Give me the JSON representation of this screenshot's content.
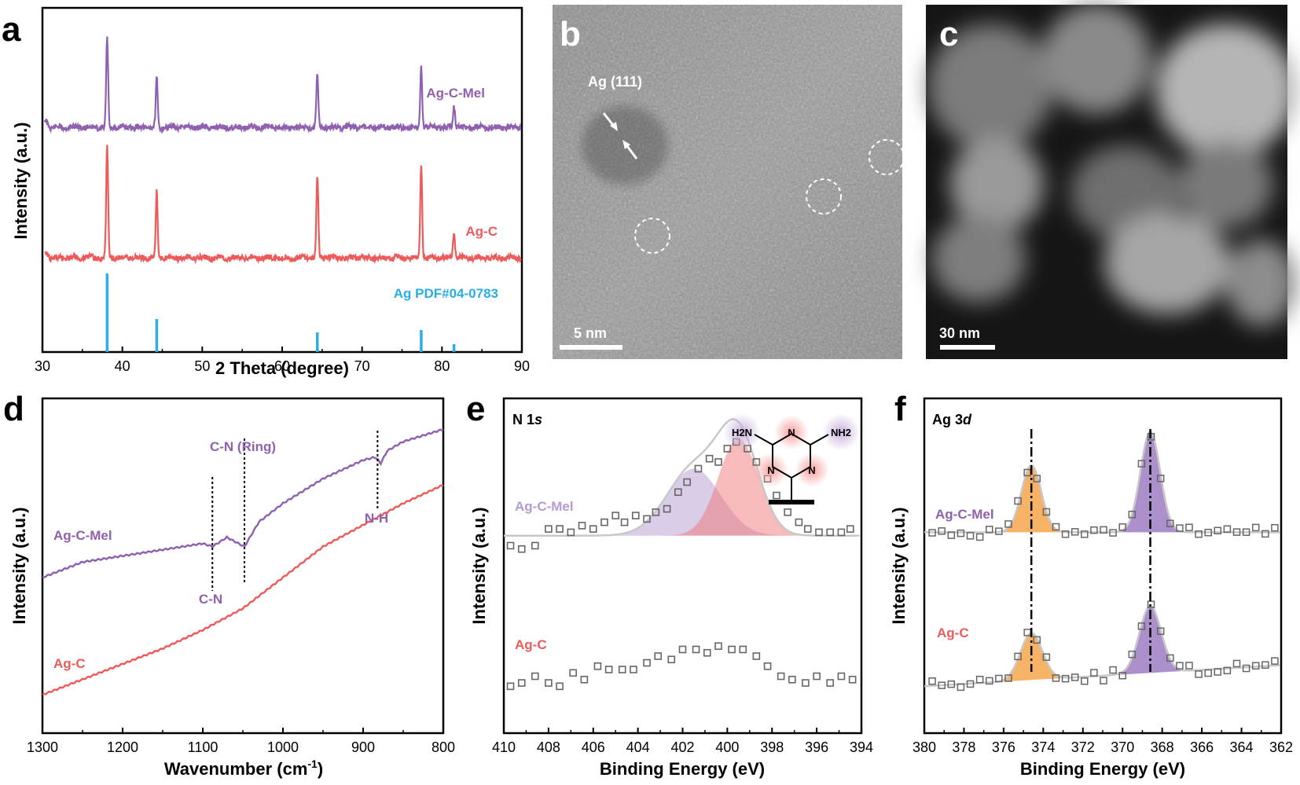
{
  "colors": {
    "purple": "#9060b0",
    "red": "#ee5a5a",
    "blue": "#29aee8",
    "orange": "#f5a54a",
    "gray_marker": "#666666",
    "fit_gray": "#c8c8c8"
  },
  "panels": {
    "a": {
      "letter": "a"
    },
    "b": {
      "letter": "b",
      "annotation": "Ag (111)",
      "scalebar": "5 nm"
    },
    "c": {
      "letter": "c",
      "scalebar": "30 nm"
    },
    "d": {
      "letter": "d",
      "annotations": [
        "C-N (Ring)",
        "N-H",
        "C-N"
      ]
    },
    "e": {
      "letter": "e",
      "label_main": "N 1",
      "label_italic": "s"
    },
    "f": {
      "letter": "f",
      "label_main": "Ag 3",
      "label_italic": "d"
    }
  },
  "chart_data": [
    {
      "id": "a",
      "type": "line",
      "xlabel": "2 Theta (degree)",
      "ylabel": "Intensity (a.u.)",
      "xlim": [
        30,
        90
      ],
      "xticks": [
        "30",
        "40",
        "50",
        "60",
        "70",
        "80",
        "90"
      ],
      "series": [
        {
          "name": "Ag-C-Mel",
          "color": "#9060b0",
          "peaks": [
            [
              38.1,
              1.0
            ],
            [
              44.3,
              0.55
            ],
            [
              64.4,
              0.6
            ],
            [
              77.4,
              0.7
            ],
            [
              81.5,
              0.25
            ]
          ]
        },
        {
          "name": "Ag-C",
          "color": "#ee5a5a",
          "peaks": [
            [
              38.1,
              1.0
            ],
            [
              44.3,
              0.6
            ],
            [
              64.4,
              0.75
            ],
            [
              77.4,
              0.85
            ],
            [
              81.5,
              0.25
            ]
          ]
        }
      ],
      "reference": {
        "name": "Ag PDF#04-0783",
        "color": "#29aee8",
        "lines": [
          [
            38.1,
            1.0
          ],
          [
            44.3,
            0.42
          ],
          [
            64.4,
            0.25
          ],
          [
            77.4,
            0.28
          ],
          [
            81.5,
            0.1
          ]
        ]
      }
    },
    {
      "id": "d",
      "type": "line",
      "xlabel": "Wavenumber",
      "xlabel_unit": "(cm",
      "xlabel_sup": "-1",
      "ylabel": "Intensity (a.u.)",
      "xlim": [
        1300,
        800
      ],
      "xticks": [
        "1300",
        "1200",
        "1100",
        "1000",
        "900",
        "800"
      ],
      "series": [
        {
          "name": "Ag-C-Mel",
          "color": "#9060b0",
          "points": [
            [
              1300,
              0.42
            ],
            [
              1250,
              0.47
            ],
            [
              1200,
              0.49
            ],
            [
              1150,
              0.51
            ],
            [
              1100,
              0.53
            ],
            [
              1088,
              0.52
            ],
            [
              1070,
              0.55
            ],
            [
              1048,
              0.52
            ],
            [
              1030,
              0.6
            ],
            [
              1000,
              0.66
            ],
            [
              950,
              0.74
            ],
            [
              900,
              0.8
            ],
            [
              885,
              0.81
            ],
            [
              878,
              0.79
            ],
            [
              870,
              0.83
            ],
            [
              850,
              0.86
            ],
            [
              800,
              0.9
            ]
          ]
        },
        {
          "name": "Ag-C",
          "color": "#ee5a5a",
          "points": [
            [
              1300,
              0.04
            ],
            [
              1250,
              0.09
            ],
            [
              1200,
              0.14
            ],
            [
              1150,
              0.19
            ],
            [
              1100,
              0.25
            ],
            [
              1050,
              0.32
            ],
            [
              1000,
              0.42
            ],
            [
              950,
              0.52
            ],
            [
              900,
              0.59
            ],
            [
              850,
              0.66
            ],
            [
              800,
              0.72
            ]
          ]
        }
      ]
    },
    {
      "id": "e",
      "type": "scatter",
      "xlabel": "Binding Energy (eV)",
      "ylabel": "Intensity (a.u.)",
      "xlim": [
        410,
        394
      ],
      "xticks": [
        "410",
        "408",
        "406",
        "404",
        "402",
        "400",
        "398",
        "396",
        "394"
      ],
      "series": [
        {
          "name": "Ag-C-Mel",
          "color": "#9060b0",
          "points": [
            [
              409.7,
              0.56
            ],
            [
              409.2,
              0.55
            ],
            [
              408.6,
              0.56
            ],
            [
              408,
              0.61
            ],
            [
              407.5,
              0.61
            ],
            [
              407,
              0.6
            ],
            [
              406.5,
              0.62
            ],
            [
              406,
              0.61
            ],
            [
              405.5,
              0.63
            ],
            [
              405,
              0.65
            ],
            [
              404.6,
              0.63
            ],
            [
              404.1,
              0.65
            ],
            [
              403.6,
              0.64
            ],
            [
              403.2,
              0.66
            ],
            [
              402.7,
              0.67
            ],
            [
              402.2,
              0.72
            ],
            [
              401.8,
              0.75
            ],
            [
              401.3,
              0.79
            ],
            [
              400.8,
              0.82
            ],
            [
              400.4,
              0.81
            ],
            [
              400,
              0.85
            ],
            [
              399.6,
              0.87
            ],
            [
              399.1,
              0.85
            ],
            [
              398.7,
              0.81
            ],
            [
              398.2,
              0.76
            ],
            [
              397.8,
              0.71
            ],
            [
              397.3,
              0.66
            ],
            [
              396.8,
              0.63
            ],
            [
              396.4,
              0.61
            ],
            [
              395.9,
              0.6
            ],
            [
              395.4,
              0.6
            ],
            [
              394.9,
              0.6
            ],
            [
              394.5,
              0.61
            ]
          ]
        },
        {
          "name": "Ag-C",
          "color": "#ee5a5a",
          "points": [
            [
              409.7,
              0.14
            ],
            [
              409.2,
              0.15
            ],
            [
              408.6,
              0.17
            ],
            [
              408,
              0.15
            ],
            [
              407.5,
              0.14
            ],
            [
              406.9,
              0.18
            ],
            [
              406.4,
              0.16
            ],
            [
              405.8,
              0.2
            ],
            [
              405.3,
              0.19
            ],
            [
              404.7,
              0.19
            ],
            [
              404.2,
              0.19
            ],
            [
              403.6,
              0.21
            ],
            [
              403.1,
              0.23
            ],
            [
              402.5,
              0.22
            ],
            [
              402,
              0.25
            ],
            [
              401.4,
              0.25
            ],
            [
              400.9,
              0.24
            ],
            [
              400.4,
              0.26
            ],
            [
              399.8,
              0.25
            ],
            [
              399.3,
              0.25
            ],
            [
              398.7,
              0.23
            ],
            [
              398.2,
              0.2
            ],
            [
              397.6,
              0.17
            ],
            [
              397.1,
              0.16
            ],
            [
              396.5,
              0.15
            ],
            [
              396,
              0.17
            ],
            [
              395.4,
              0.15
            ],
            [
              394.9,
              0.17
            ],
            [
              394.4,
              0.16
            ]
          ]
        }
      ],
      "fit_components": [
        {
          "center": 401.5,
          "height": 0.2,
          "width": 1.2,
          "color": "#b49bd2"
        },
        {
          "center": 399.5,
          "height": 0.29,
          "width": 0.9,
          "color": "#f07878"
        }
      ],
      "inset_atoms": [
        "H2N",
        "N",
        "NH2",
        "N",
        "N"
      ]
    },
    {
      "id": "f",
      "type": "scatter",
      "xlabel": "Binding Energy (eV)",
      "ylabel": "Intensity (a.u.)",
      "xlim": [
        380,
        362
      ],
      "xticks": [
        "380",
        "378",
        "376",
        "374",
        "372",
        "370",
        "368",
        "366",
        "364",
        "362"
      ],
      "reference_lines": [
        374.6,
        368.6
      ],
      "series": [
        {
          "name": "Ag-C-Mel",
          "color": "#9060b0",
          "baseline": 0.6,
          "peaks": [
            [
              374.6,
              0.2,
              0.5
            ],
            [
              368.6,
              0.3,
              0.5
            ]
          ]
        },
        {
          "name": "Ag-C",
          "color": "#ee5a5a",
          "baseline": 0.14,
          "peaks": [
            [
              374.6,
              0.14,
              0.55
            ],
            [
              368.6,
              0.2,
              0.55
            ]
          ]
        }
      ]
    }
  ]
}
